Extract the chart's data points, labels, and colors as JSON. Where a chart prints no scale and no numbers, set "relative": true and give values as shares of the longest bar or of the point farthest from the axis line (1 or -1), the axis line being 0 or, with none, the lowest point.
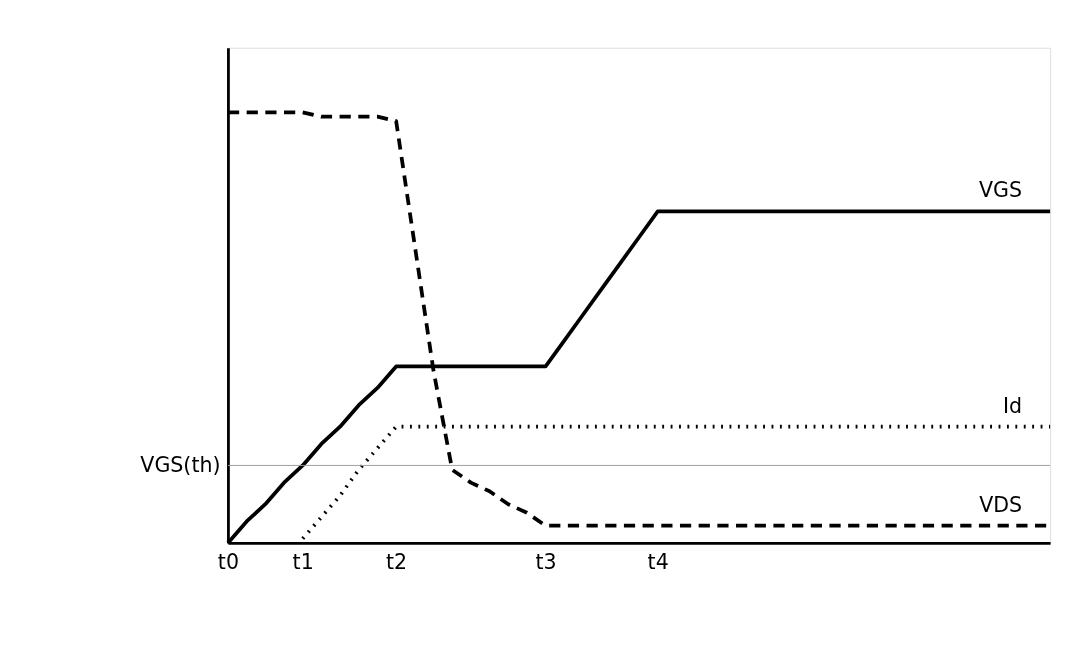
{
  "chart_data": {
    "type": "line",
    "relative": true,
    "categories": [
      "t0",
      null,
      null,
      null,
      "t1",
      null,
      null,
      null,
      null,
      "t2",
      null,
      null,
      null,
      null,
      null,
      null,
      null,
      "t3",
      null,
      null,
      null,
      null,
      null,
      "t4",
      null,
      null,
      null,
      null,
      null,
      null,
      null,
      null,
      null,
      null,
      null,
      null,
      null,
      null,
      null,
      null,
      null,
      null,
      null,
      null,
      null
    ],
    "grid": false,
    "marker": "none",
    "ref_lines": [
      {
        "axis": "y",
        "value": 0.18,
        "label": "VGS(th)",
        "color": "#999999"
      }
    ],
    "series": [
      {
        "name": "VGS",
        "color": "#000000",
        "line_style": "solid",
        "values": [
          0,
          0.05,
          0.09,
          0.14,
          0.18,
          0.23,
          0.27,
          0.32,
          0.36,
          0.41,
          0.41,
          0.41,
          0.41,
          0.41,
          0.41,
          0.41,
          0.41,
          0.41,
          0.47,
          0.53,
          0.59,
          0.65,
          0.71,
          0.77,
          0.77,
          0.77,
          0.77,
          0.77,
          0.77,
          0.77,
          0.77,
          0.77,
          0.77,
          0.77,
          0.77,
          0.77,
          0.77,
          0.77,
          0.77,
          0.77,
          0.77,
          0.77,
          0.77,
          0.77,
          0.77
        ]
      },
      {
        "name": "Id",
        "color": "#000000",
        "line_style": "dotted",
        "values": [
          null,
          null,
          null,
          null,
          0.01,
          0.06,
          0.11,
          0.17,
          0.22,
          0.27,
          0.27,
          0.27,
          0.27,
          0.27,
          0.27,
          0.27,
          0.27,
          0.27,
          0.27,
          0.27,
          0.27,
          0.27,
          0.27,
          0.27,
          0.27,
          0.27,
          0.27,
          0.27,
          0.27,
          0.27,
          0.27,
          0.27,
          0.27,
          0.27,
          0.27,
          0.27,
          0.27,
          0.27,
          0.27,
          0.27,
          0.27,
          0.27,
          0.27,
          0.27,
          0.27
        ]
      },
      {
        "name": "VDS",
        "color": "#000000",
        "line_style": "dashed",
        "values": [
          1,
          1,
          1,
          1,
          1,
          0.99,
          0.99,
          0.99,
          0.99,
          0.98,
          0.69,
          0.4,
          0.17,
          0.14,
          0.12,
          0.09,
          0.07,
          0.04,
          0.04,
          0.04,
          0.04,
          0.04,
          0.04,
          0.04,
          0.04,
          0.04,
          0.04,
          0.04,
          0.04,
          0.04,
          0.04,
          0.04,
          0.04,
          0.04,
          0.04,
          0.04,
          0.04,
          0.04,
          0.04,
          0.04,
          0.04,
          0.04,
          0.04,
          0.04,
          0.04
        ]
      }
    ]
  }
}
